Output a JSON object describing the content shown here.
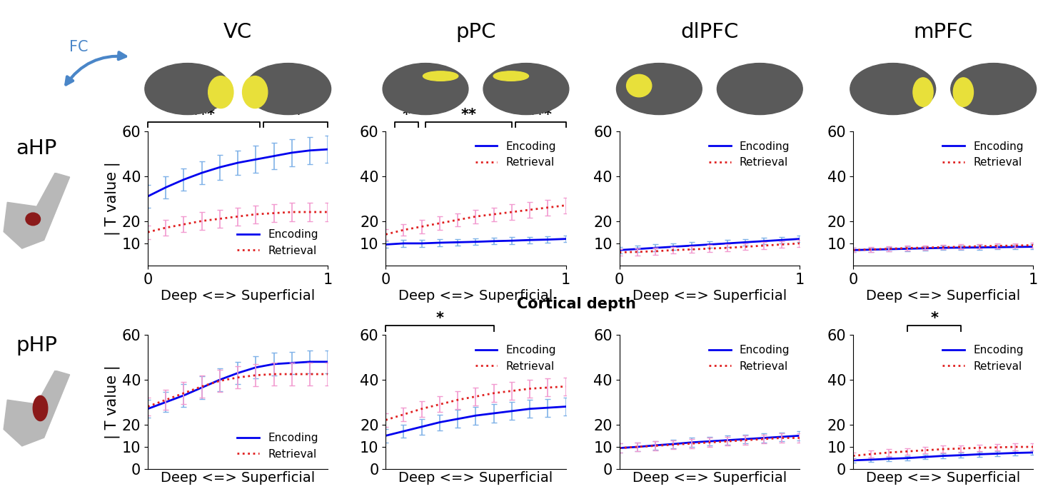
{
  "columns": [
    "VC",
    "pPC",
    "dlPFC",
    "mPFC"
  ],
  "rows": [
    "aHP",
    "pHP"
  ],
  "figure_labels": {
    "arrow": "FC",
    "center": "Cortical depth"
  },
  "chart_data": [
    {
      "type": "line",
      "ylabel": "| T value |",
      "xlabel": "Deep <=> Superficial",
      "x": [
        0,
        0.1,
        0.2,
        0.3,
        0.4,
        0.5,
        0.6,
        0.7,
        0.8,
        0.9,
        1
      ],
      "xlim": [
        0,
        1
      ],
      "xticks": [
        0,
        1
      ],
      "ylim": [
        0,
        60
      ],
      "yticks": [
        10,
        20,
        40,
        60
      ],
      "legend": "lower right",
      "series": [
        {
          "name": "Encoding",
          "color": "#0000ee",
          "line_style": "solid",
          "values": [
            31,
            35,
            38.5,
            41.5,
            44,
            46,
            47.5,
            49,
            50.5,
            51.5,
            52
          ],
          "error": [
            5,
            5,
            5,
            5,
            5.5,
            5.5,
            6,
            6,
            6,
            6,
            6
          ]
        },
        {
          "name": "Retrieval",
          "color": "#e02020",
          "line_style": "dotted",
          "values": [
            15,
            17,
            18.5,
            20,
            21,
            22,
            23,
            23.5,
            24,
            24,
            24
          ],
          "error": [
            3,
            3.5,
            3.5,
            4,
            4,
            4,
            4,
            4,
            4,
            4,
            4
          ]
        }
      ],
      "significance": [
        {
          "label": "***",
          "x": [
            0,
            0.62
          ]
        },
        {
          "label": "**",
          "x": [
            0.64,
            1
          ]
        }
      ]
    },
    {
      "type": "line",
      "xlabel": "Deep <=> Superficial",
      "x": [
        0,
        0.1,
        0.2,
        0.3,
        0.4,
        0.5,
        0.6,
        0.7,
        0.8,
        0.9,
        1
      ],
      "xlim": [
        0,
        1
      ],
      "xticks": [
        0,
        1
      ],
      "ylim": [
        0,
        60
      ],
      "yticks": [
        10,
        20,
        40,
        60
      ],
      "legend": "upper right",
      "series": [
        {
          "name": "Encoding",
          "color": "#0000ee",
          "line_style": "solid",
          "values": [
            9.5,
            10,
            10,
            10.3,
            10.5,
            10.7,
            11,
            11.2,
            11.5,
            11.7,
            12
          ],
          "error": [
            1.5,
            1.5,
            1.5,
            1.5,
            1.5,
            1.5,
            1.5,
            1.5,
            1.5,
            1.5,
            1.5
          ]
        },
        {
          "name": "Retrieval",
          "color": "#e02020",
          "line_style": "dotted",
          "values": [
            14,
            16,
            17.5,
            19,
            20.5,
            22,
            23,
            24,
            25,
            26,
            27
          ],
          "error": [
            2.5,
            2.5,
            3,
            3,
            3,
            3,
            3,
            3.5,
            3.5,
            3.5,
            3.5
          ]
        }
      ],
      "significance": [
        {
          "label": "*",
          "x": [
            0.05,
            0.18
          ]
        },
        {
          "label": "**",
          "x": [
            0.22,
            0.7
          ]
        },
        {
          "label": "***",
          "x": [
            0.72,
            1
          ]
        }
      ]
    },
    {
      "type": "line",
      "xlabel": "Deep <=> Superficial",
      "x": [
        0,
        0.1,
        0.2,
        0.3,
        0.4,
        0.5,
        0.6,
        0.7,
        0.8,
        0.9,
        1
      ],
      "xlim": [
        0,
        1
      ],
      "xticks": [
        0,
        1
      ],
      "ylim": [
        0,
        60
      ],
      "yticks": [
        10,
        20,
        40,
        60
      ],
      "legend": "upper right",
      "series": [
        {
          "name": "Encoding",
          "color": "#0000ee",
          "line_style": "solid",
          "values": [
            7,
            7.5,
            8,
            8.5,
            9,
            9.5,
            10,
            10.5,
            11,
            11.5,
            12
          ],
          "error": [
            1.5,
            1.5,
            1.5,
            1.5,
            1.5,
            1.5,
            1.5,
            1.5,
            1.5,
            1.5,
            1.5
          ]
        },
        {
          "name": "Retrieval",
          "color": "#e02020",
          "line_style": "dotted",
          "values": [
            6,
            6.2,
            6.5,
            7,
            7.3,
            7.7,
            8,
            8.5,
            9,
            9.5,
            10
          ],
          "error": [
            1.5,
            1.5,
            1.5,
            1.5,
            1.5,
            1.5,
            1.5,
            1.5,
            1.5,
            1.5,
            1.5
          ]
        }
      ],
      "significance": []
    },
    {
      "type": "line",
      "xlabel": "Deep <=> Superficial",
      "x": [
        0,
        0.1,
        0.2,
        0.3,
        0.4,
        0.5,
        0.6,
        0.7,
        0.8,
        0.9,
        1
      ],
      "xlim": [
        0,
        1
      ],
      "xticks": [
        0,
        1
      ],
      "ylim": [
        0,
        60
      ],
      "yticks": [
        10,
        20,
        40,
        60
      ],
      "legend": "upper right",
      "series": [
        {
          "name": "Encoding",
          "color": "#0000ee",
          "line_style": "solid",
          "values": [
            7,
            7.2,
            7.4,
            7.6,
            7.8,
            8,
            8.1,
            8.2,
            8.3,
            8.4,
            8.5
          ],
          "error": [
            1,
            1,
            1,
            1,
            1,
            1,
            1,
            1,
            1,
            1,
            1
          ]
        },
        {
          "name": "Retrieval",
          "color": "#e02020",
          "line_style": "dotted",
          "values": [
            7,
            7.3,
            7.6,
            7.9,
            8.1,
            8.3,
            8.5,
            8.7,
            8.9,
            9,
            9.2
          ],
          "error": [
            1,
            1,
            1,
            1,
            1,
            1,
            1,
            1,
            1,
            1,
            1
          ]
        }
      ],
      "significance": []
    },
    {
      "type": "line",
      "ylabel": "| T value |",
      "xlabel": "Deep <=> Superficial",
      "tick_labels": "y",
      "x": [
        0,
        0.1,
        0.2,
        0.3,
        0.4,
        0.5,
        0.6,
        0.7,
        0.8,
        0.9,
        1
      ],
      "xlim": [
        0,
        1
      ],
      "ylim": [
        0,
        60
      ],
      "yticks": [
        0,
        10,
        20,
        40,
        60
      ],
      "legend": "lower right",
      "series": [
        {
          "name": "Encoding",
          "color": "#0000ee",
          "line_style": "solid",
          "values": [
            27,
            30,
            33,
            36.5,
            40,
            43,
            45.5,
            47,
            47.5,
            48,
            48
          ],
          "error": [
            4,
            4.5,
            5,
            5,
            5,
            5,
            5,
            5,
            5,
            5,
            5
          ]
        },
        {
          "name": "Retrieval",
          "color": "#e02020",
          "line_style": "dotted",
          "values": [
            28,
            31,
            34,
            37,
            39.5,
            41,
            42,
            42.5,
            42.5,
            42.5,
            42.5
          ],
          "error": [
            4,
            4.5,
            5,
            5,
            5,
            5,
            5,
            5,
            5,
            5,
            5
          ]
        }
      ],
      "significance": []
    },
    {
      "type": "line",
      "xlabel": "Deep <=> Superficial",
      "tick_labels": "y",
      "x": [
        0,
        0.1,
        0.2,
        0.3,
        0.4,
        0.5,
        0.6,
        0.7,
        0.8,
        0.9,
        1
      ],
      "xlim": [
        0,
        1
      ],
      "ylim": [
        0,
        60
      ],
      "yticks": [
        0,
        10,
        20,
        40,
        60
      ],
      "legend": "upper right",
      "series": [
        {
          "name": "Encoding",
          "color": "#0000ee",
          "line_style": "solid",
          "values": [
            15,
            17,
            19,
            21,
            22.5,
            24,
            25,
            26,
            27,
            27.5,
            28
          ],
          "error": [
            3,
            3,
            3.5,
            3.5,
            4,
            4,
            4,
            4,
            4,
            4,
            4
          ]
        },
        {
          "name": "Retrieval",
          "color": "#e02020",
          "line_style": "dotted",
          "values": [
            22,
            24.5,
            27,
            29,
            31,
            32.5,
            34,
            35,
            36,
            36.5,
            37
          ],
          "error": [
            3,
            3,
            3.5,
            3.5,
            4,
            4,
            4,
            4,
            4,
            4,
            4
          ]
        }
      ],
      "significance": [
        {
          "label": "*",
          "x": [
            0,
            0.6
          ]
        }
      ]
    },
    {
      "type": "line",
      "xlabel": "Deep <=> Superficial",
      "tick_labels": "y",
      "x": [
        0,
        0.1,
        0.2,
        0.3,
        0.4,
        0.5,
        0.6,
        0.7,
        0.8,
        0.9,
        1
      ],
      "xlim": [
        0,
        1
      ],
      "ylim": [
        0,
        60
      ],
      "yticks": [
        0,
        10,
        20,
        40,
        60
      ],
      "legend": "upper right",
      "series": [
        {
          "name": "Encoding",
          "color": "#0000ee",
          "line_style": "solid",
          "values": [
            9.5,
            10,
            10.7,
            11.3,
            12,
            12.5,
            13,
            13.5,
            14,
            14.5,
            15
          ],
          "error": [
            2,
            2,
            2,
            2,
            2,
            2,
            2,
            2,
            2,
            2,
            2
          ]
        },
        {
          "name": "Retrieval",
          "color": "#e02020",
          "line_style": "dotted",
          "values": [
            9.5,
            10,
            10.5,
            11,
            11.5,
            12,
            12.5,
            13,
            13.5,
            14,
            14
          ],
          "error": [
            2,
            2,
            2,
            2,
            2,
            2,
            2,
            2,
            2,
            2,
            2
          ]
        }
      ],
      "significance": []
    },
    {
      "type": "line",
      "xlabel": "Deep <=> Superficial",
      "tick_labels": "y",
      "x": [
        0,
        0.1,
        0.2,
        0.3,
        0.4,
        0.5,
        0.6,
        0.7,
        0.8,
        0.9,
        1
      ],
      "xlim": [
        0,
        1
      ],
      "ylim": [
        0,
        60
      ],
      "yticks": [
        0,
        10,
        20,
        40,
        60
      ],
      "legend": "upper right",
      "series": [
        {
          "name": "Encoding",
          "color": "#0000ee",
          "line_style": "solid",
          "values": [
            4,
            4.3,
            4.7,
            5,
            5.5,
            6,
            6.3,
            6.7,
            7,
            7.3,
            7.5
          ],
          "error": [
            1,
            1,
            1,
            1,
            1,
            1,
            1,
            1,
            1,
            1,
            1
          ]
        },
        {
          "name": "Retrieval",
          "color": "#e02020",
          "line_style": "dotted",
          "values": [
            6,
            6.8,
            7.5,
            8,
            8.5,
            9,
            9.3,
            9.6,
            9.8,
            10,
            10
          ],
          "error": [
            1.5,
            1.5,
            1.5,
            1.5,
            1.5,
            1.5,
            1.5,
            1.5,
            1.5,
            1.5,
            1.5
          ]
        }
      ],
      "significance": [
        {
          "label": "*",
          "x": [
            0.3,
            0.6
          ]
        }
      ]
    }
  ]
}
